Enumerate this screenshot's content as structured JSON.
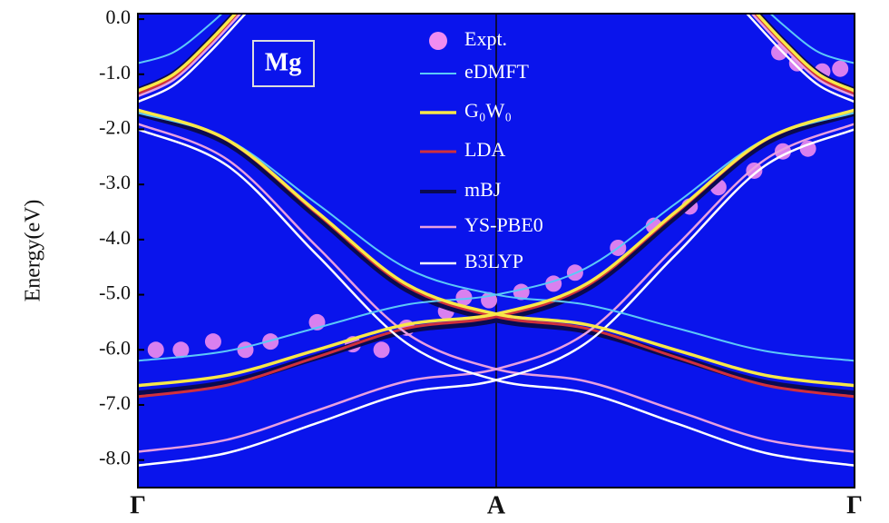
{
  "chart_data": {
    "type": "line",
    "ylabel": "Energy(eV)",
    "annotation": "Mg",
    "background": "#0a14ec",
    "xlim": [
      0,
      2
    ],
    "ylim": [
      -8.5,
      0.1
    ],
    "xticks": [
      {
        "value": 0,
        "label": "Γ"
      },
      {
        "value": 1,
        "label": "A"
      },
      {
        "value": 2,
        "label": "Γ"
      }
    ],
    "yticks": [
      {
        "value": 0,
        "label": "0.0"
      },
      {
        "value": -1,
        "label": "-1.0"
      },
      {
        "value": -2,
        "label": "-2.0"
      },
      {
        "value": -3,
        "label": "-3.0"
      },
      {
        "value": -4,
        "label": "-4.0"
      },
      {
        "value": -5,
        "label": "-5.0"
      },
      {
        "value": -6,
        "label": "-6.0"
      },
      {
        "value": -7,
        "label": "-7.0"
      },
      {
        "value": -8,
        "label": "-8.0"
      }
    ],
    "series": [
      {
        "name": "Expt.",
        "type": "scatter",
        "color": "#f08cf0",
        "x": [
          0.05,
          0.12,
          0.21,
          0.3,
          0.37,
          0.5,
          0.6,
          0.68,
          0.75,
          0.86,
          0.91,
          0.98,
          1.07,
          1.16,
          1.22,
          1.34,
          1.44,
          1.54,
          1.62,
          1.72,
          1.8,
          1.87,
          1.79,
          1.84,
          1.91,
          1.96
        ],
        "values": [
          -6.0,
          -6.0,
          -5.85,
          -6.0,
          -5.85,
          -5.5,
          -5.9,
          -6.0,
          -5.6,
          -5.3,
          -5.05,
          -5.1,
          -4.95,
          -4.8,
          -4.6,
          -4.15,
          -3.75,
          -3.4,
          -3.05,
          -2.75,
          -2.4,
          -2.35,
          -0.6,
          -0.8,
          -0.95,
          -0.9
        ]
      },
      {
        "name": "mBJ",
        "color": "#0a0a50",
        "bands": [
          {
            "x": [
              0,
              0.25,
              0.5,
              0.75,
              1,
              1.25,
              1.5,
              1.75,
              2
            ],
            "values": [
              -6.8,
              -6.6,
              -6.13,
              -5.65,
              -5.45,
              -4.9,
              -3.58,
              -2.25,
              -1.7
            ]
          },
          {
            "x": [
              0,
              0.25,
              0.5,
              0.75,
              1,
              1.25,
              1.5,
              1.75,
              2
            ],
            "values": [
              -1.7,
              -2.25,
              -3.58,
              -4.9,
              -5.45,
              -5.65,
              -6.13,
              -6.6,
              -6.8
            ]
          },
          {
            "x": [
              0,
              0.1,
              0.2,
              0.3
            ],
            "values": [
              -1.3,
              -1.0,
              -0.4,
              0.3
            ]
          },
          {
            "x": [
              1.7,
              1.8,
              1.9,
              2
            ],
            "values": [
              0.3,
              -0.4,
              -1.0,
              -1.3
            ]
          }
        ]
      },
      {
        "name": "LDA",
        "color": "#d0303c",
        "bands": [
          {
            "x": [
              0,
              0.25,
              0.5,
              0.75,
              1,
              1.25,
              1.5,
              1.75,
              2
            ],
            "values": [
              -6.85,
              -6.64,
              -6.13,
              -5.61,
              -5.4,
              -4.85,
              -3.53,
              -2.2,
              -1.65
            ]
          },
          {
            "x": [
              0,
              0.25,
              0.5,
              0.75,
              1,
              1.25,
              1.5,
              1.75,
              2
            ],
            "values": [
              -1.65,
              -2.2,
              -3.53,
              -4.85,
              -5.4,
              -5.61,
              -6.13,
              -6.64,
              -6.85
            ]
          },
          {
            "x": [
              0,
              0.1,
              0.2,
              0.3
            ],
            "values": [
              -1.35,
              -1.05,
              -0.45,
              0.25
            ]
          },
          {
            "x": [
              1.7,
              1.8,
              1.9,
              2
            ],
            "values": [
              0.25,
              -0.45,
              -1.05,
              -1.35
            ]
          }
        ]
      },
      {
        "name": "YS-PBE0",
        "color": "#e8a0e0",
        "bands": [
          {
            "x": [
              0,
              0.25,
              0.5,
              0.75,
              1,
              1.25,
              1.5,
              1.75,
              2
            ],
            "values": [
              -7.85,
              -7.63,
              -7.1,
              -6.57,
              -6.35,
              -5.7,
              -4.13,
              -2.55,
              -1.9
            ]
          },
          {
            "x": [
              0,
              0.25,
              0.5,
              0.75,
              1,
              1.25,
              1.5,
              1.75,
              2
            ],
            "values": [
              -1.9,
              -2.55,
              -4.13,
              -5.7,
              -6.35,
              -6.57,
              -7.1,
              -7.63,
              -7.85
            ]
          },
          {
            "x": [
              0,
              0.1,
              0.2,
              0.3
            ],
            "values": [
              -1.4,
              -1.1,
              -0.5,
              0.2
            ]
          },
          {
            "x": [
              1.7,
              1.8,
              1.9,
              2
            ],
            "values": [
              0.2,
              -0.5,
              -1.1,
              -1.4
            ]
          }
        ]
      },
      {
        "name": "B3LYP",
        "color": "#ffffff",
        "bands": [
          {
            "x": [
              0,
              0.25,
              0.5,
              0.75,
              1,
              1.25,
              1.5,
              1.75,
              2
            ],
            "values": [
              -8.1,
              -7.87,
              -7.33,
              -6.78,
              -6.55,
              -5.88,
              -4.28,
              -2.66,
              -2.0
            ]
          },
          {
            "x": [
              0,
              0.25,
              0.5,
              0.75,
              1,
              1.25,
              1.5,
              1.75,
              2
            ],
            "values": [
              -2.0,
              -2.66,
              -4.28,
              -5.88,
              -6.55,
              -6.78,
              -7.33,
              -7.87,
              -8.1
            ]
          },
          {
            "x": [
              0,
              0.1,
              0.2,
              0.3
            ],
            "values": [
              -1.5,
              -1.2,
              -0.6,
              0.1
            ]
          },
          {
            "x": [
              1.7,
              1.8,
              1.9,
              2
            ],
            "values": [
              0.1,
              -0.6,
              -1.2,
              -1.5
            ]
          }
        ]
      },
      {
        "name": "eDMFT",
        "color": "#5cc8f8",
        "bands": [
          {
            "x": [
              0,
              0.25,
              0.5,
              0.75,
              1,
              1.25,
              1.5,
              1.75,
              2
            ],
            "values": [
              -6.2,
              -6.02,
              -5.6,
              -5.18,
              -5.0,
              -4.52,
              -3.35,
              -2.18,
              -1.7
            ]
          },
          {
            "x": [
              0,
              0.25,
              0.5,
              0.75,
              1,
              1.25,
              1.5,
              1.75,
              2
            ],
            "values": [
              -1.7,
              -2.18,
              -3.35,
              -4.52,
              -5.0,
              -5.18,
              -5.6,
              -6.02,
              -6.2
            ]
          },
          {
            "x": [
              0,
              0.1,
              0.2,
              0.3
            ],
            "values": [
              -0.8,
              -0.6,
              -0.1,
              0.5
            ]
          },
          {
            "x": [
              1.7,
              1.8,
              1.9,
              2
            ],
            "values": [
              0.5,
              -0.1,
              -0.6,
              -0.8
            ]
          }
        ]
      },
      {
        "name": "G₀W₀",
        "color": "#f8e848",
        "bands": [
          {
            "x": [
              0,
              0.25,
              0.5,
              0.75,
              1,
              1.25,
              1.5,
              1.75,
              2
            ],
            "values": [
              -6.65,
              -6.46,
              -6.0,
              -5.54,
              -5.35,
              -4.81,
              -3.5,
              -2.19,
              -1.65
            ]
          },
          {
            "x": [
              0,
              0.25,
              0.5,
              0.75,
              1,
              1.25,
              1.5,
              1.75,
              2
            ],
            "values": [
              -1.65,
              -2.19,
              -3.5,
              -4.81,
              -5.35,
              -5.54,
              -6.0,
              -6.46,
              -6.65
            ]
          },
          {
            "x": [
              0,
              0.1,
              0.2,
              0.3
            ],
            "values": [
              -1.3,
              -1.0,
              -0.4,
              0.3
            ]
          },
          {
            "x": [
              1.7,
              1.8,
              1.9,
              2
            ],
            "values": [
              0.3,
              -0.4,
              -1.0,
              -1.3
            ]
          }
        ]
      }
    ]
  }
}
